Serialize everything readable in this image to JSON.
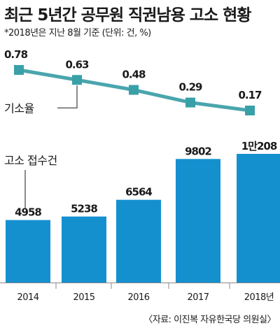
{
  "title": "최근 5년간 공무원 직권남용 고소 현황",
  "subtitle": "*2018년은 지난 8월 기준 (단위: 건, %)",
  "source": "〈자료: 이진복 자유한국당 의원실〉",
  "colors": {
    "line": "#4aa5ad",
    "marker": "#3aa0a8",
    "bar": "#1590cf",
    "text": "#1a1a1a"
  },
  "chart_data": [
    {
      "type": "line",
      "series": [
        {
          "name": "기소율",
          "x": [
            "2014",
            "2015",
            "2016",
            "2017",
            "2018년"
          ],
          "values": [
            0.78,
            0.63,
            0.48,
            0.29,
            0.17
          ],
          "labels": [
            "0.78",
            "0.63",
            "0.48",
            "0.29",
            "0.17"
          ]
        }
      ]
    },
    {
      "type": "bar",
      "categories": [
        "2014",
        "2015",
        "2016",
        "2017",
        "2018년"
      ],
      "series": [
        {
          "name": "고소 접수건",
          "values": [
            4958,
            5238,
            6564,
            9802,
            10208
          ],
          "labels": [
            "4958",
            "5238",
            "6564",
            "9802",
            "1만208"
          ]
        }
      ],
      "ylim": [
        0,
        10208
      ]
    }
  ]
}
